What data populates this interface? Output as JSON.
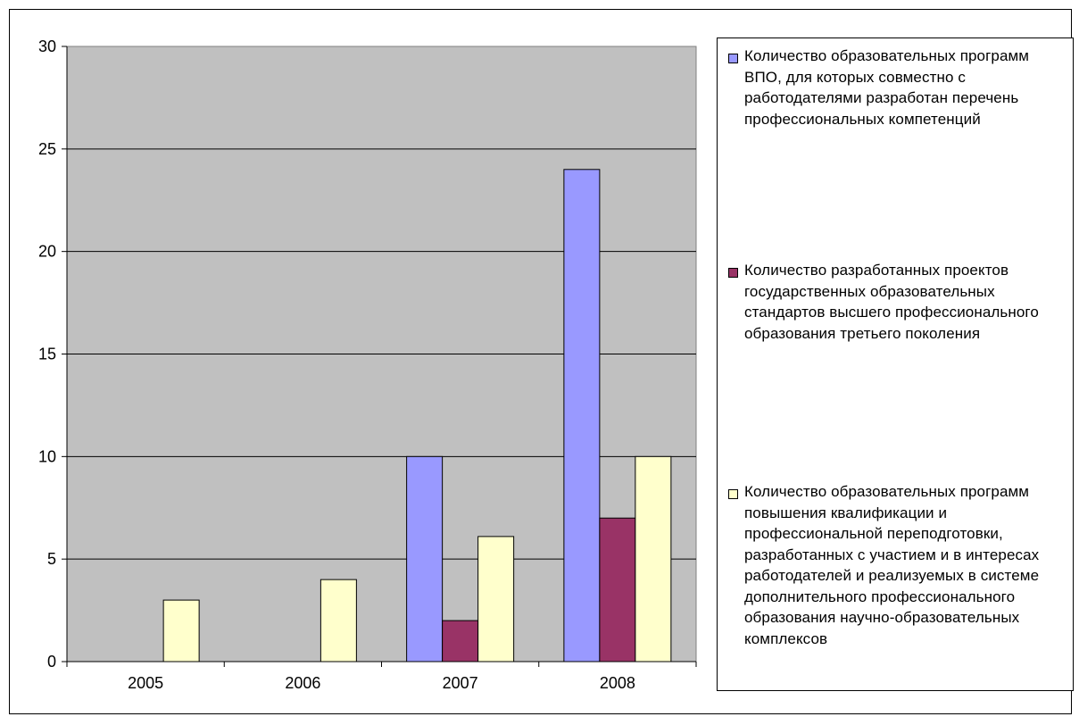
{
  "chart_data": {
    "type": "bar",
    "categories": [
      "2005",
      "2006",
      "2007",
      "2008"
    ],
    "series": [
      {
        "name": "Количество образовательных программ ВПО, для которых совместно с работодателями разработан перечень профессиональных компетенций",
        "color": "#9999ff",
        "values": [
          0,
          0,
          10,
          24
        ]
      },
      {
        "name": "Количество разработанных проектов государственных образовательных стандартов высшего профессионального образования третьего поколения",
        "color": "#993366",
        "values": [
          0,
          0,
          2,
          7
        ]
      },
      {
        "name": "Количество образовательных программ повышения квалификации и профессиональной переподготовки, разработанных с участием и в интересах работодателей и реализуемых в системе дополнительного профессионального образования научно-образовательных комплексов",
        "color": "#ffffcc",
        "values": [
          3,
          4,
          6.1,
          10
        ]
      }
    ],
    "ylim": [
      0,
      30
    ],
    "yticks": [
      "0",
      "5",
      "10",
      "15",
      "20",
      "25",
      "30"
    ],
    "title": "",
    "xlabel": "",
    "ylabel": "",
    "grid": true,
    "plot_background": "#c0c0c0",
    "legend_position": "right"
  }
}
